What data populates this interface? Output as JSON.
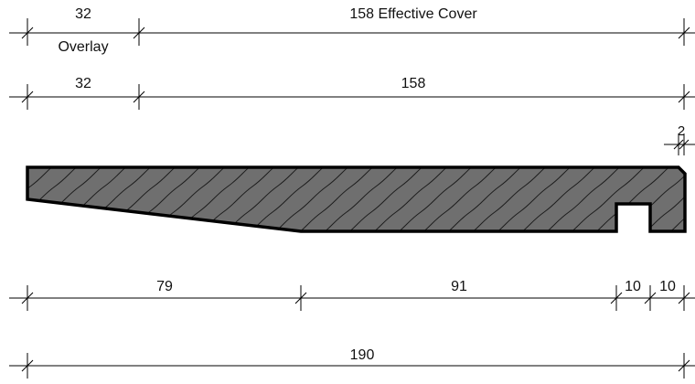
{
  "dimensions": {
    "overlay_width": "32",
    "overlay_label": "Overlay",
    "effective_cover": "158 Effective Cover",
    "row2_left": "32",
    "row2_right": "158",
    "bevel": "2",
    "bottom_a": "79",
    "bottom_b": "91",
    "bottom_c": "10",
    "bottom_d": "10",
    "total": "190"
  },
  "colors": {
    "profile_fill": "#6f6f6f",
    "line": "#000000"
  }
}
